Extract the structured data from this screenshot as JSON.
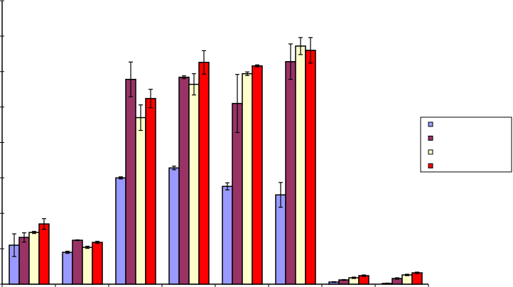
{
  "chart_data": {
    "type": "bar",
    "title": "",
    "xlabel": "",
    "ylabel": "",
    "ylim": [
      0,
      8
    ],
    "yticks": [
      0,
      1,
      2,
      3,
      4,
      5,
      6,
      7,
      8
    ],
    "grid": false,
    "legend_placement": "right",
    "categories": [
      "",
      "",
      "",
      "",
      "",
      "",
      "",
      ""
    ],
    "series": [
      {
        "name": "",
        "color": "#9999FF",
        "values": [
          1.1,
          0.9,
          3.0,
          3.28,
          2.76,
          2.52,
          0.06,
          0.02
        ],
        "errors": [
          0.32,
          0.03,
          0.03,
          0.05,
          0.1,
          0.35,
          0.01,
          0.01
        ]
      },
      {
        "name": "",
        "color": "#993366",
        "values": [
          1.32,
          1.24,
          5.78,
          5.84,
          5.1,
          6.28,
          0.12,
          0.16
        ],
        "errors": [
          0.13,
          0.01,
          0.49,
          0.04,
          0.82,
          0.5,
          0.01,
          0.02
        ]
      },
      {
        "name": "",
        "color": "#FFFFCC",
        "values": [
          1.46,
          1.04,
          4.7,
          5.64,
          5.94,
          6.72,
          0.18,
          0.26
        ],
        "errors": [
          0.03,
          0.03,
          0.36,
          0.3,
          0.05,
          0.24,
          0.02,
          0.02
        ]
      },
      {
        "name": "",
        "color": "#FF0000",
        "values": [
          1.7,
          1.18,
          5.24,
          6.26,
          6.16,
          6.6,
          0.24,
          0.32
        ],
        "errors": [
          0.15,
          0.03,
          0.26,
          0.33,
          0.03,
          0.36,
          0.02,
          0.02
        ]
      }
    ]
  }
}
